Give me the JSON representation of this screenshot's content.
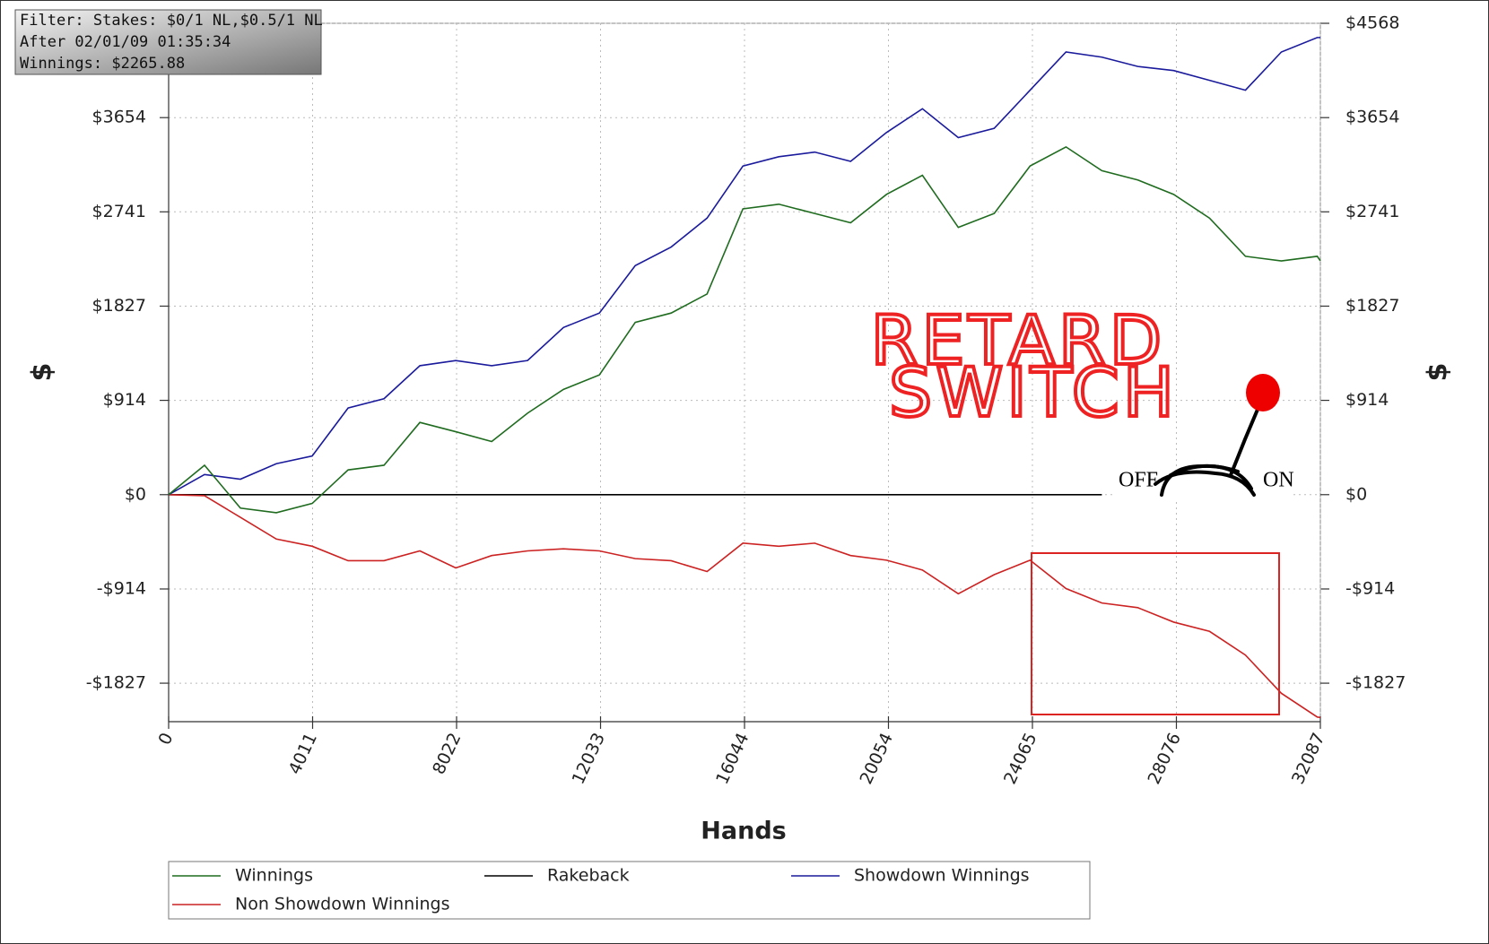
{
  "chart_data": {
    "type": "line",
    "info_lines": [
      "Filter: Stakes: $0/1 NL,$0.5/1 NL",
      "After 02/01/09 01:35:34",
      "Winnings: $2265.88"
    ],
    "x_label": "Hands",
    "y_label": "$",
    "y2_label": "$",
    "annotations": [
      "RETARD",
      "SWITCH",
      "OFF",
      "ON"
    ],
    "x": [
      0,
      1000,
      2000,
      3000,
      4000,
      5000,
      6000,
      7000,
      8000,
      9000,
      10000,
      11000,
      12000,
      13000,
      14000,
      15000,
      16000,
      17000,
      18000,
      19000,
      20000,
      21000,
      22000,
      23000,
      24000,
      25000,
      26000,
      27000,
      28000,
      29000,
      30000,
      31000,
      32000,
      32087
    ],
    "series": [
      {
        "name": "Winnings",
        "color": "#1f6b1f",
        "values": [
          0,
          285,
          -130,
          -175,
          -85,
          240,
          285,
          700,
          610,
          515,
          790,
          1020,
          1160,
          1670,
          1760,
          1945,
          2770,
          2815,
          2725,
          2635,
          2910,
          3095,
          2590,
          2725,
          3185,
          3370,
          3140,
          3050,
          2910,
          2680,
          2310,
          2265,
          2310,
          2266
        ]
      },
      {
        "name": "Rakeback",
        "color": "#000000",
        "values": [
          0,
          0,
          0,
          0,
          0,
          0,
          0,
          0,
          0,
          0,
          0,
          0,
          0,
          0,
          0,
          0,
          0,
          0,
          0,
          0,
          0,
          0,
          0,
          0,
          0,
          0,
          0,
          null,
          null,
          null,
          null,
          null,
          null,
          null
        ]
      },
      {
        "name": "Showdown Winnings",
        "color": "#1a1a9c",
        "values": [
          0,
          195,
          150,
          300,
          375,
          840,
          930,
          1250,
          1300,
          1250,
          1300,
          1620,
          1760,
          2220,
          2400,
          2680,
          3185,
          3275,
          3320,
          3230,
          3510,
          3740,
          3460,
          3550,
          3920,
          4290,
          4240,
          4150,
          4110,
          4015,
          3920,
          4290,
          4430,
          4430
        ]
      },
      {
        "name": "Non Showdown Winnings",
        "color": "#cc2222",
        "values": [
          0,
          -10,
          -220,
          -430,
          -500,
          -640,
          -640,
          -545,
          -710,
          -590,
          -545,
          -525,
          -545,
          -620,
          -640,
          -745,
          -470,
          -500,
          -470,
          -590,
          -635,
          -730,
          -960,
          -775,
          -635,
          -910,
          -1050,
          -1095,
          -1235,
          -1325,
          -1555,
          -1925,
          -2155,
          -2160
        ]
      }
    ],
    "xlim": [
      0,
      32087
    ],
    "xticks": [
      0,
      4011,
      8022,
      12033,
      16044,
      20054,
      24065,
      28076,
      32087
    ],
    "ylim": [
      -2200,
      4568
    ],
    "yticks": [
      {
        "value": -1827,
        "label": "-$1827"
      },
      {
        "value": -914,
        "label": "-$914"
      },
      {
        "value": 0,
        "label": "$0"
      },
      {
        "value": 914,
        "label": "$914"
      },
      {
        "value": 1827,
        "label": "$1827"
      },
      {
        "value": 2741,
        "label": "$2741"
      },
      {
        "value": 3654,
        "label": "$3654"
      },
      {
        "value": 4568,
        "label": "$4568"
      }
    ],
    "y2lim": [
      -2200,
      4568
    ],
    "y2ticks": [
      {
        "value": -1827,
        "label": "-$1827"
      },
      {
        "value": -914,
        "label": "-$914"
      },
      {
        "value": 0,
        "label": "$0"
      },
      {
        "value": 914,
        "label": "$914"
      },
      {
        "value": 1827,
        "label": "$1827"
      },
      {
        "value": 2741,
        "label": "$2741"
      },
      {
        "value": 3654,
        "label": "$3654"
      },
      {
        "value": 4568,
        "label": "$4568"
      }
    ],
    "grid": true
  }
}
